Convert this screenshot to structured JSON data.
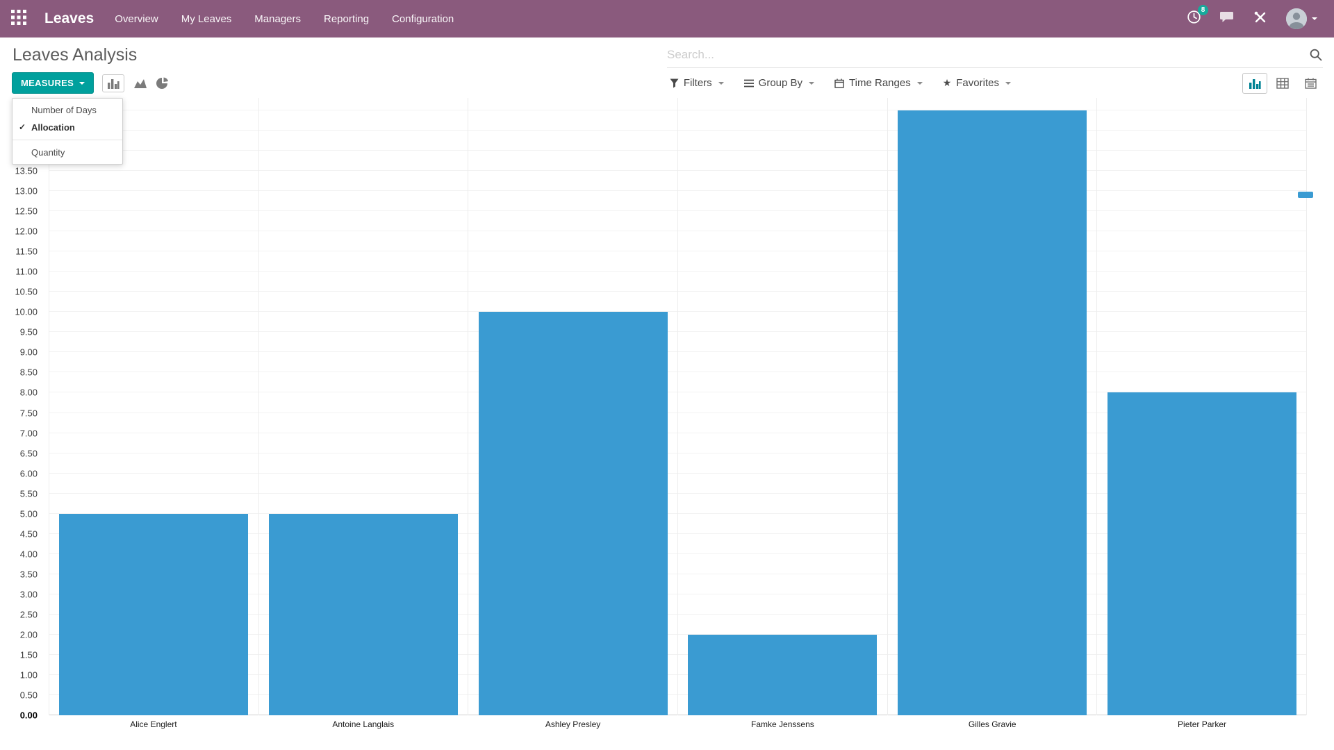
{
  "navbar": {
    "app_title": "Leaves",
    "menu_items": [
      "Overview",
      "My Leaves",
      "Managers",
      "Reporting",
      "Configuration"
    ],
    "activity_badge": "8"
  },
  "header": {
    "page_title": "Leaves Analysis",
    "search_placeholder": "Search..."
  },
  "toolbar": {
    "measures_label": "MEASURES",
    "measures_menu": [
      {
        "label": "Number of Days",
        "checked": false
      },
      {
        "label": "Allocation",
        "checked": true
      },
      {
        "label": "Quantity",
        "checked": false
      }
    ],
    "filters_label": "Filters",
    "group_by_label": "Group By",
    "time_ranges_label": "Time Ranges",
    "favorites_label": "Favorites"
  },
  "icons": {
    "check": "✓",
    "star": "★"
  },
  "colors": {
    "navbar_bg": "#8a5a7d",
    "primary_button": "#00a09d",
    "badge": "#16aa9c",
    "active_view_icon": "#008294"
  },
  "chart_data": {
    "type": "bar",
    "title": "",
    "measure": "Allocation",
    "categories": [
      "Alice Englert",
      "Antoine Langlais",
      "Ashley Presley",
      "Famke Jenssens",
      "Gilles Gravie",
      "Pieter Parker"
    ],
    "values": [
      5.0,
      5.0,
      10.0,
      2.0,
      15.0,
      8.0
    ],
    "xlabel": "",
    "ylabel": "",
    "ylim": [
      0,
      15
    ],
    "ytick_step": 0.5,
    "ytick_decimals": 2,
    "bar_color": "#3a9bd2",
    "grid": true,
    "legend_position": "top-right"
  }
}
